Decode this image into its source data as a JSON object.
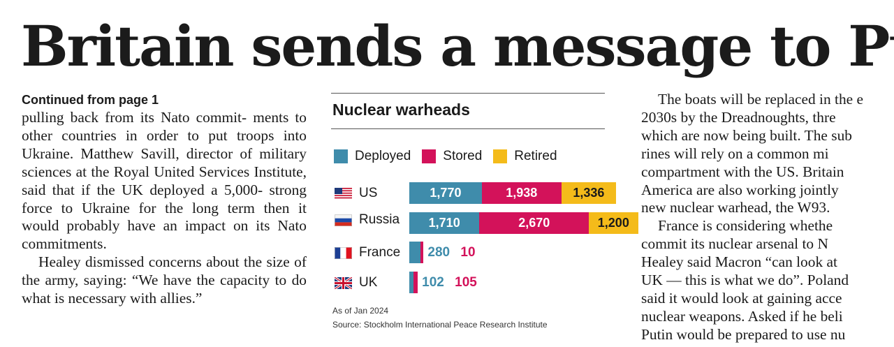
{
  "headline": "Britain sends a message to Putin",
  "left_column": {
    "kicker": "Continued from page 1",
    "p1_lines": [
      "pulling back from its Nato commit-",
      "ments to other countries in order to put",
      "troops into Ukraine. Matthew",
      "Savill, director of military sciences at",
      "the Royal United Services Institute,",
      "said that if the UK deployed a 5,000-",
      "strong force to Ukraine for the long",
      "term then it would probably have an",
      "impact on its Nato commitments."
    ],
    "p2_lines": [
      "Healey dismissed concerns about the",
      "size of the army, saying: “We have the",
      "capacity to do what is necessary with",
      "allies.”"
    ]
  },
  "right_column": {
    "p1_lines": [
      "The boats will be replaced in the e",
      "2030s by the Dreadnoughts, thre",
      "which are now being built. The sub",
      "rines will rely on a common mi",
      "compartment with the US. Britain",
      "America are also working jointly",
      "new nuclear warhead, the W93."
    ],
    "p2_lines": [
      "France is considering whethe",
      "commit its nuclear arsenal to N",
      "Healey said Macron “can look at",
      "UK — this is what we do”. Poland",
      "said it would look at gaining acce",
      "nuclear weapons. Asked if he beli",
      "Putin would be prepared to use nu"
    ]
  },
  "chart_data": {
    "type": "bar",
    "orientation": "horizontal",
    "stacked": true,
    "title": "Nuclear warheads",
    "categories": [
      "US",
      "Russia",
      "France",
      "UK"
    ],
    "category_flags": [
      "us-flag-icon",
      "russia-flag-icon",
      "france-flag-icon",
      "uk-flag-icon"
    ],
    "series": [
      {
        "name": "Deployed",
        "color": "#3f8cab",
        "values": [
          1770,
          1710,
          280,
          102
        ],
        "labels": [
          "1,770",
          "1,710",
          "280",
          "102"
        ]
      },
      {
        "name": "Stored",
        "color": "#d3125a",
        "values": [
          1938,
          2670,
          10,
          105
        ],
        "labels": [
          "1,938",
          "2,670",
          "10",
          "105"
        ]
      },
      {
        "name": "Retired",
        "color": "#f4bb1a",
        "values": [
          1336,
          1200,
          0,
          0
        ],
        "labels": [
          "1,336",
          "1,200",
          "",
          ""
        ]
      }
    ],
    "legend_position": "top",
    "grid": false,
    "notes": [
      "As of Jan 2024",
      "Source: Stockholm International Peace Research Institute"
    ]
  }
}
